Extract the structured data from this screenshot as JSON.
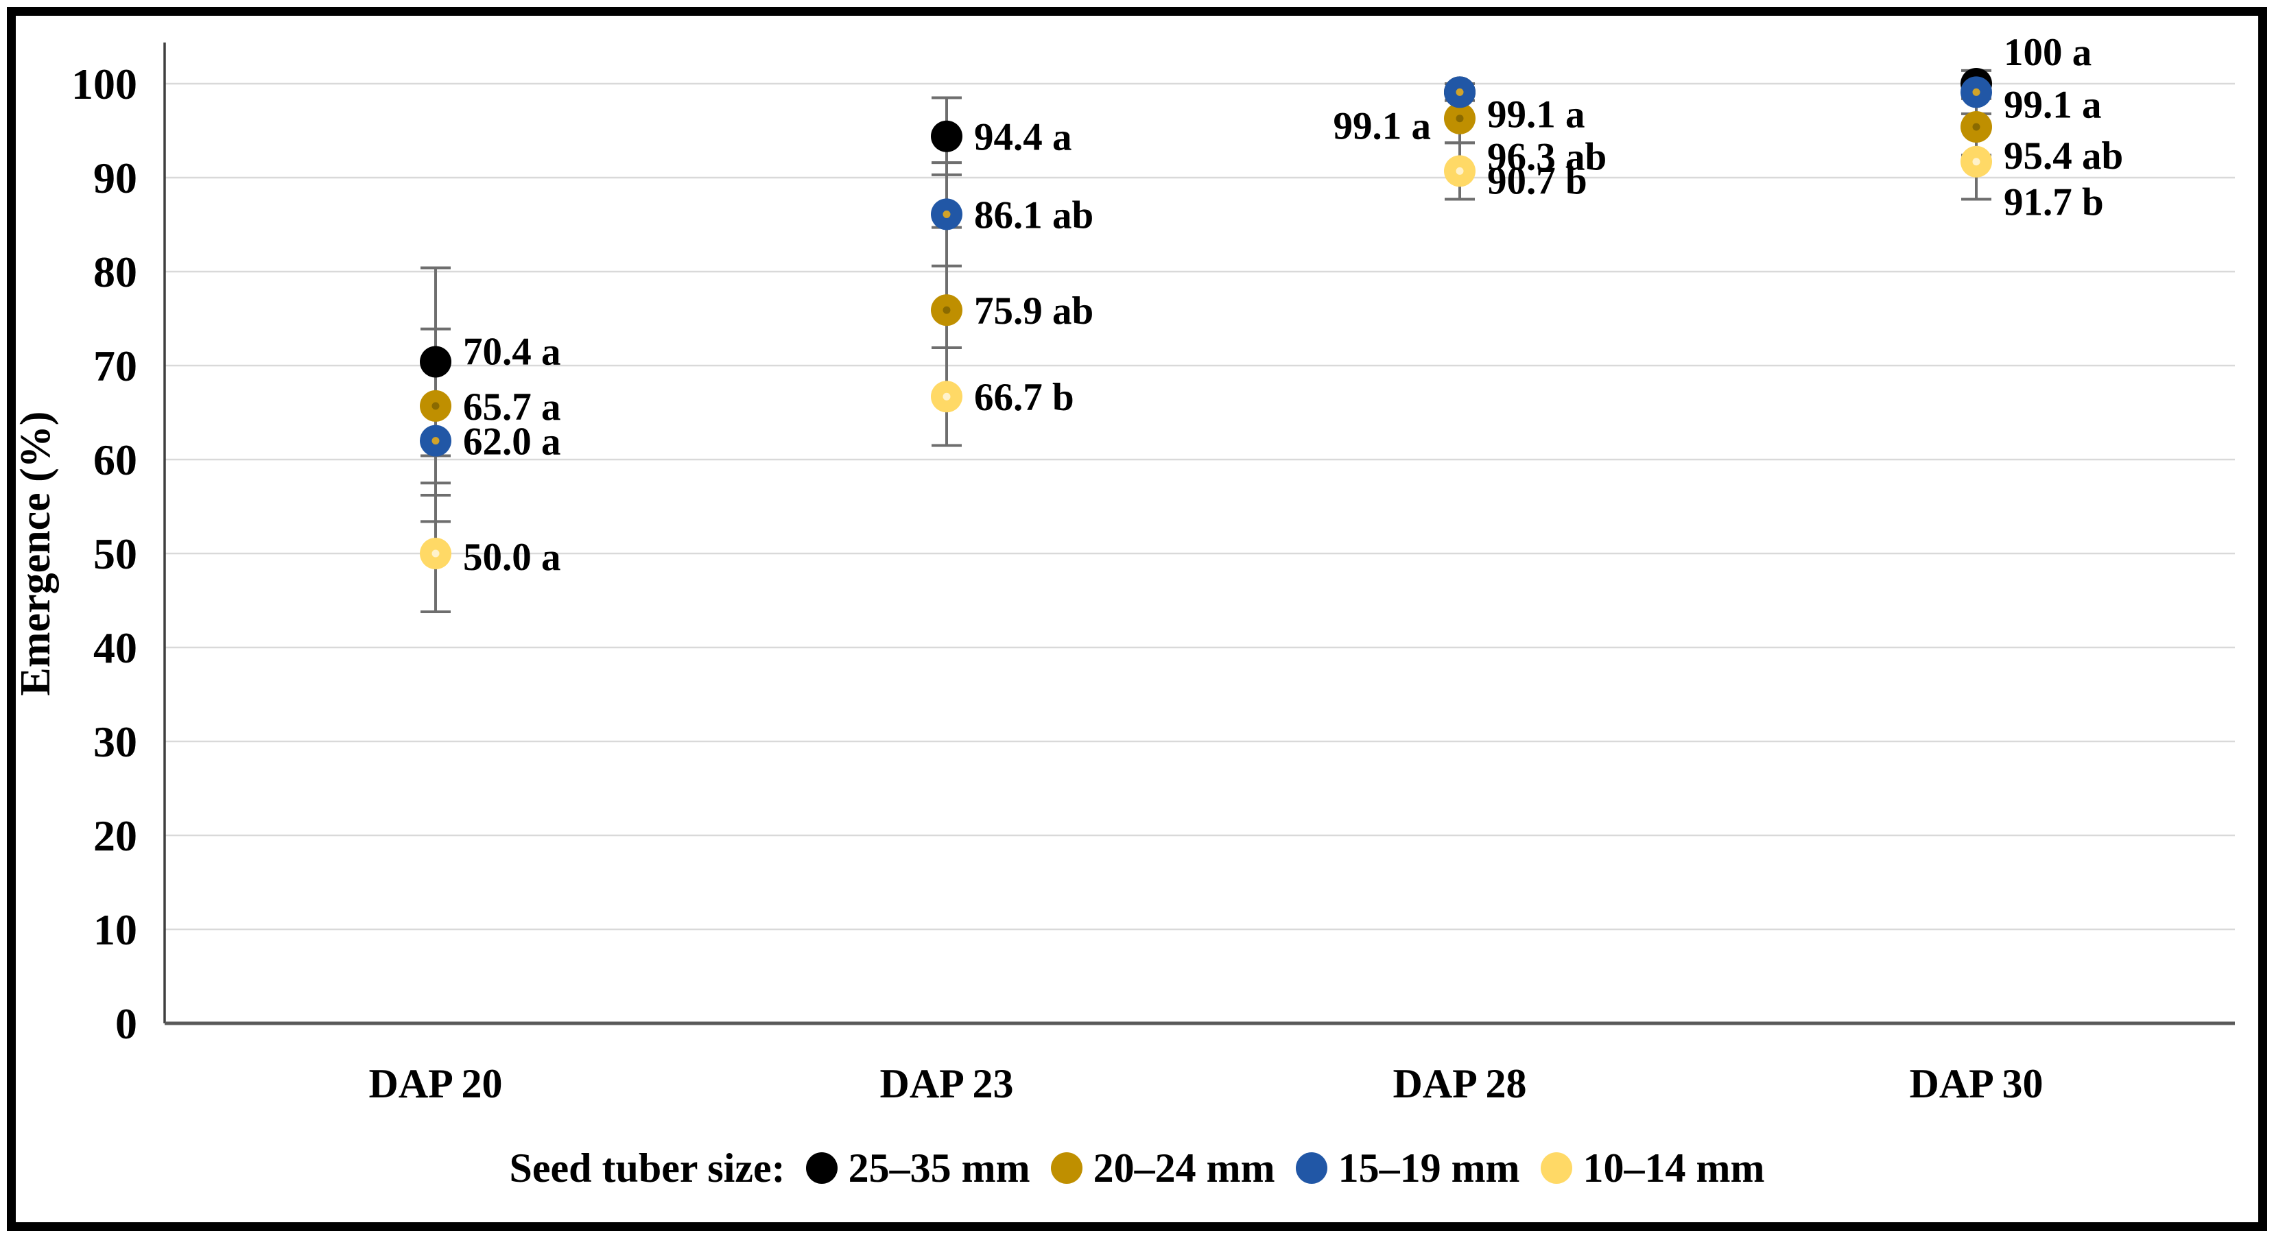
{
  "figure": {
    "background": "#ffffff",
    "frame_color": "#000000",
    "grid_color": "#d9d9d9",
    "y_axis_color": "#3f3f3f",
    "x_axis_color": "#595959",
    "error_bar_color": "#6e6e6e"
  },
  "chart_data": {
    "type": "scatter",
    "title": "",
    "xlabel": "",
    "ylabel": "Emergence (%)",
    "ylim": [
      0,
      100
    ],
    "yticks": [
      0,
      10,
      20,
      30,
      40,
      50,
      60,
      70,
      80,
      90,
      100
    ],
    "grid": true,
    "categories": [
      "DAP 20",
      "DAP 23",
      "DAP 28",
      "DAP 30"
    ],
    "legend_position": "bottom",
    "legend_title": "Seed tuber size:",
    "series": [
      {
        "name": "25–35 mm",
        "color": "#000000",
        "dot_color": "#000000",
        "values": [
          70.4,
          94.4,
          99.1,
          100
        ],
        "errors": [
          10.0,
          4.1,
          0.9,
          0
        ],
        "labels": [
          "70.4 a",
          "94.4 a",
          "99.1 a",
          "100 a"
        ],
        "label_pos": [
          {
            "side": "right",
            "dy": -16
          },
          {
            "side": "right",
            "dy": 0
          },
          {
            "side": "left",
            "dy": 48
          },
          {
            "side": "right",
            "dy": -47
          }
        ]
      },
      {
        "name": "20–24 mm",
        "color": "#bf8f00",
        "dot_color": "#8a6a00",
        "values": [
          65.7,
          75.9,
          96.3,
          95.4
        ],
        "errors": [
          8.2,
          8.8,
          2.6,
          3.0
        ],
        "labels": [
          "65.7 a",
          "75.9 ab",
          "96.3 ab",
          "95.4 ab"
        ],
        "label_pos": [
          {
            "side": "right",
            "dy": 0
          },
          {
            "side": "right",
            "dy": 0
          },
          {
            "side": "right",
            "dy": 55
          },
          {
            "side": "right",
            "dy": 41
          }
        ]
      },
      {
        "name": "15–19 mm",
        "color": "#2157a6",
        "dot_color": "#d1a32a",
        "values": [
          62.0,
          86.1,
          99.1,
          99.1
        ],
        "errors": [
          8.6,
          5.5,
          0.9,
          2.3
        ],
        "labels": [
          "62.0 a",
          "86.1 ab",
          "99.1 a",
          "99.1 a"
        ],
        "label_pos": [
          {
            "side": "right",
            "dy": 0
          },
          {
            "side": "right",
            "dy": 0
          },
          {
            "side": "right",
            "dy": 31
          },
          {
            "side": "right",
            "dy": 17
          }
        ]
      },
      {
        "name": "10–14 mm",
        "color": "#ffd966",
        "dot_color": "#fff2cc",
        "values": [
          50.0,
          66.7,
          90.7,
          91.7
        ],
        "errors": [
          6.2,
          5.2,
          3.0,
          4.0
        ],
        "labels": [
          "50.0 a",
          "66.7 b",
          "90.7 b",
          "91.7 b"
        ],
        "label_pos": [
          {
            "side": "right",
            "dy": 4
          },
          {
            "side": "right",
            "dy": 0
          },
          {
            "side": "right",
            "dy": 13
          },
          {
            "side": "right",
            "dy": 58
          }
        ]
      }
    ]
  }
}
